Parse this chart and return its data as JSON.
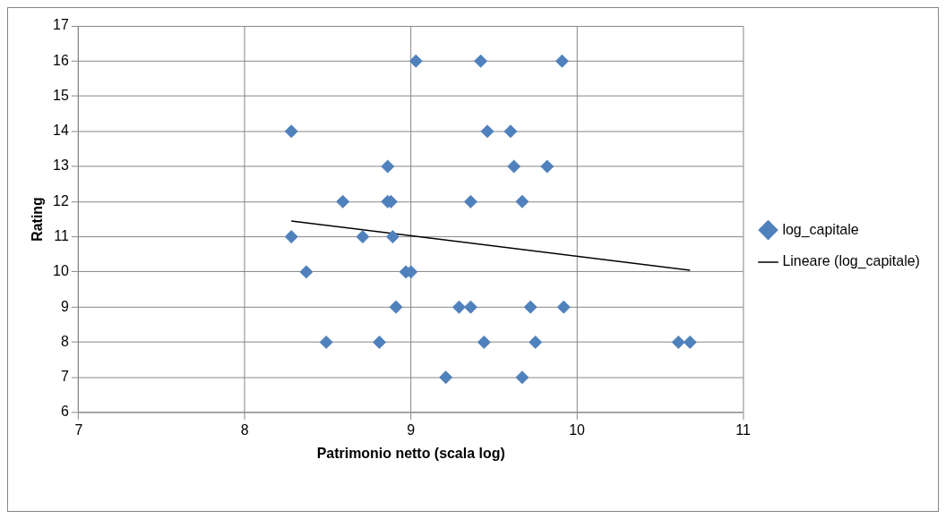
{
  "chart_data": {
    "type": "scatter",
    "xlabel": "Patrimonio netto (scala log)",
    "ylabel": "Rating",
    "xlim": [
      7,
      11
    ],
    "xticks": [
      7,
      8,
      9,
      10,
      11
    ],
    "ylim": [
      6,
      17
    ],
    "yticks": [
      6,
      7,
      8,
      9,
      10,
      11,
      12,
      13,
      14,
      15,
      16,
      17
    ],
    "grid": true,
    "legend": "right",
    "marker": "diamond",
    "series": [
      {
        "name": "log_capitale",
        "color": "#4f81bd",
        "x": [
          9.03,
          9.42,
          9.91,
          8.28,
          9.46,
          9.6,
          8.86,
          9.62,
          9.82,
          8.59,
          8.86,
          8.88,
          9.36,
          9.67,
          8.28,
          8.71,
          8.89,
          8.37,
          8.97,
          9.0,
          8.91,
          9.29,
          9.36,
          9.72,
          9.92,
          8.49,
          8.81,
          9.44,
          9.75,
          10.61,
          10.68,
          9.21,
          9.67
        ],
        "values": [
          16,
          16,
          16,
          14,
          14,
          14,
          13,
          13,
          13,
          12,
          12,
          12,
          12,
          12,
          11,
          11,
          11,
          10,
          10,
          10,
          9,
          9,
          9,
          9,
          9,
          8,
          8,
          8,
          8,
          8,
          8,
          7,
          7
        ]
      },
      {
        "name": "Lineare (log_capitale)",
        "type": "line",
        "color": "#000000",
        "marker": "none",
        "line_style": "solid",
        "x": [
          8.28,
          10.68
        ],
        "values": [
          11.45,
          10.05
        ]
      }
    ]
  }
}
